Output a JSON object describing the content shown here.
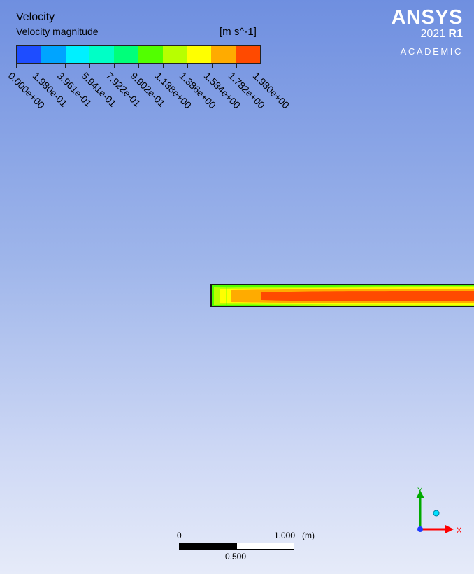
{
  "legend": {
    "title": "Velocity",
    "subtitle": "Velocity magnitude",
    "units": "[m s^-1]",
    "colors": [
      "#1e4dff",
      "#00a4ff",
      "#00f0ff",
      "#00ffc6",
      "#00ff7a",
      "#52ff00",
      "#b8ff00",
      "#ffff00",
      "#ffab00",
      "#ff4a00"
    ],
    "ticks": [
      "0.000e+00",
      "1.980e-01",
      "3.961e-01",
      "5.941e-01",
      "7.922e-01",
      "9.902e-01",
      "1.188e+00",
      "1.386e+00",
      "1.584e+00",
      "1.782e+00",
      "1.980e+00"
    ]
  },
  "logo": {
    "name": "ANSYS",
    "version_year": "2021",
    "version_release": "R1",
    "edition": "ACADEMIC"
  },
  "scale": {
    "start_label": "0",
    "end_label": "1.000",
    "unit_label": "(m)",
    "mid_label": "0.500"
  },
  "axes": {
    "x_label": "X",
    "y_label": "Y",
    "x_color": "#ff0000",
    "y_color": "#00aa00",
    "z_color": "#00e0ff"
  }
}
